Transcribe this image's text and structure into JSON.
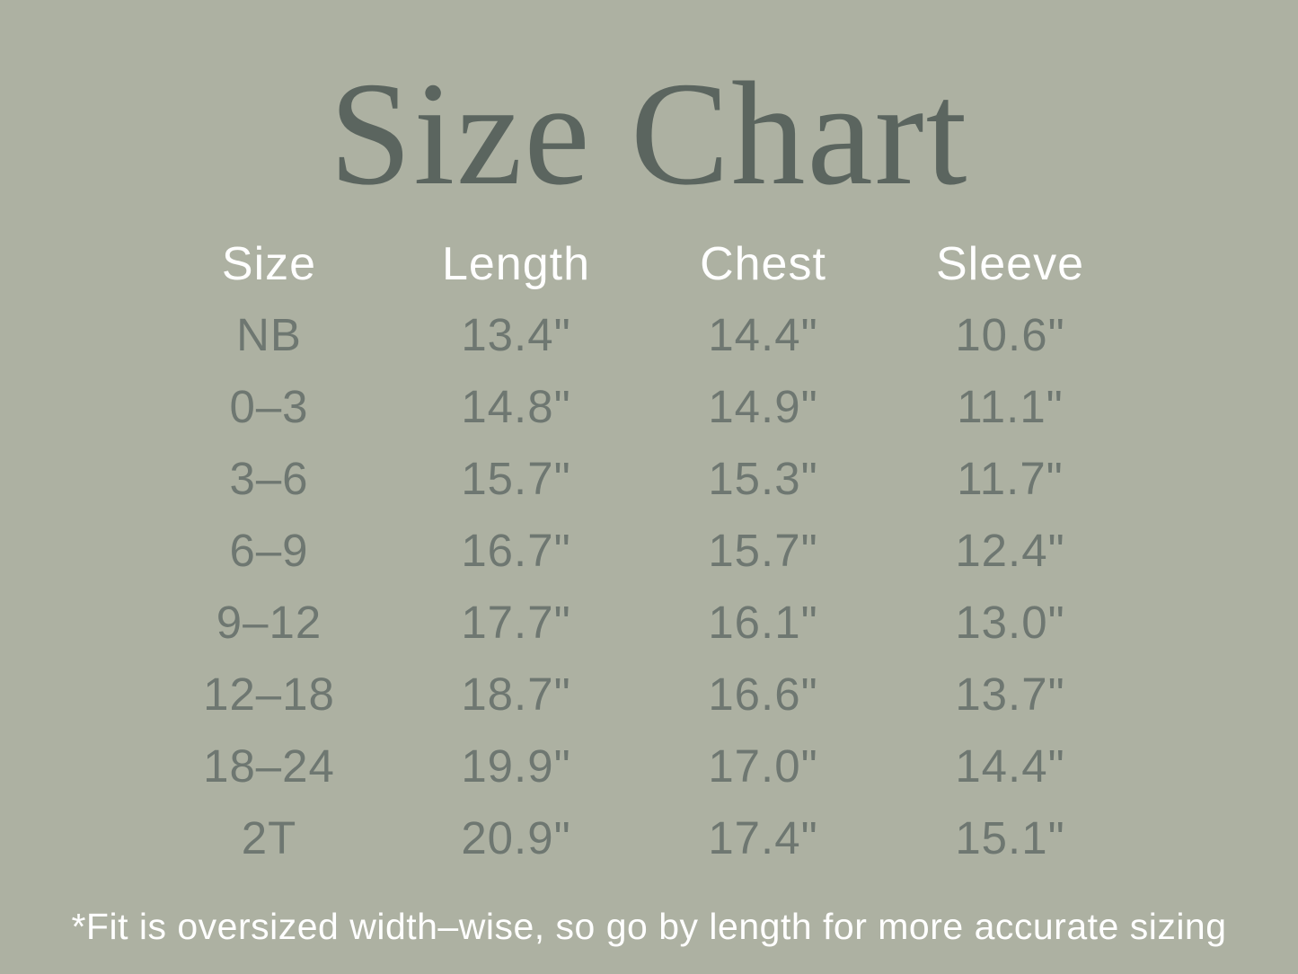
{
  "title": "Size Chart",
  "footnote": "*Fit is oversized width–wise, so go by length for more accurate sizing",
  "colors": {
    "background": "#adb1a2",
    "title_text": "#5b655f",
    "data_text": "#6e7771",
    "header_text": "#ffffff"
  },
  "table": {
    "columns": [
      "Size",
      "Length",
      "Chest",
      "Sleeve"
    ],
    "rows": [
      {
        "size": "NB",
        "length": "13.4\"",
        "chest": "14.4\"",
        "sleeve": "10.6\""
      },
      {
        "size": "0–3",
        "length": "14.8\"",
        "chest": "14.9\"",
        "sleeve": "11.1\""
      },
      {
        "size": "3–6",
        "length": "15.7\"",
        "chest": "15.3\"",
        "sleeve": "11.7\""
      },
      {
        "size": "6–9",
        "length": "16.7\"",
        "chest": "15.7\"",
        "sleeve": "12.4\""
      },
      {
        "size": "9–12",
        "length": "17.7\"",
        "chest": "16.1\"",
        "sleeve": "13.0\""
      },
      {
        "size": "12–18",
        "length": "18.7\"",
        "chest": "16.6\"",
        "sleeve": "13.7\""
      },
      {
        "size": "18–24",
        "length": "19.9\"",
        "chest": "17.0\"",
        "sleeve": "14.4\""
      },
      {
        "size": "2T",
        "length": "20.9\"",
        "chest": "17.4\"",
        "sleeve": "15.1\""
      }
    ]
  },
  "chart_data": {
    "type": "table",
    "title": "Size Chart",
    "columns": [
      "Size",
      "Length",
      "Chest",
      "Sleeve"
    ],
    "units": "inches",
    "rows": [
      [
        "NB",
        13.4,
        14.4,
        10.6
      ],
      [
        "0–3",
        14.8,
        14.9,
        11.1
      ],
      [
        "3–6",
        15.7,
        15.3,
        11.7
      ],
      [
        "6–9",
        16.7,
        15.7,
        12.4
      ],
      [
        "9–12",
        17.7,
        16.1,
        13.0
      ],
      [
        "12–18",
        18.7,
        16.6,
        13.7
      ],
      [
        "18–24",
        19.9,
        17.0,
        14.4
      ],
      [
        "2T",
        20.9,
        17.4,
        15.1
      ]
    ],
    "footnote": "*Fit is oversized width–wise, so go by length for more accurate sizing"
  }
}
